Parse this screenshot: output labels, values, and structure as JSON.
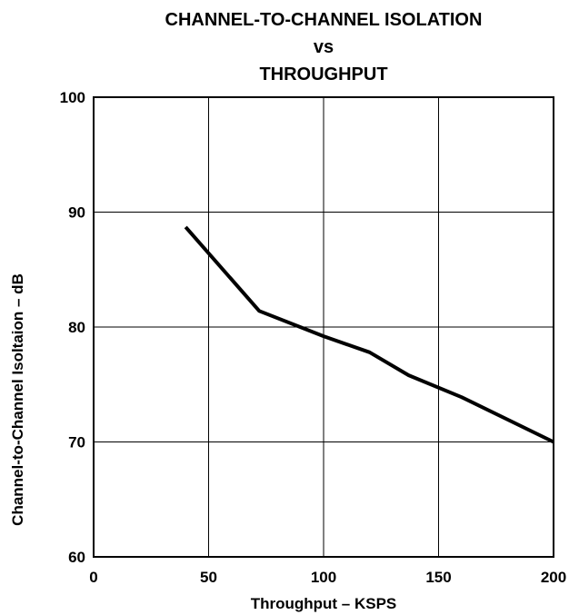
{
  "chart_data": {
    "type": "line",
    "title_lines": [
      "CHANNEL-TO-CHANNEL ISOLATION",
      "vs",
      "THROUGHPUT"
    ],
    "xlabel": "Throughput – KSPS",
    "ylabel": "Channel-to-Channel Isoltaion – dB",
    "xlim": [
      0,
      200
    ],
    "ylim": [
      60,
      100
    ],
    "x_ticks": [
      "0",
      "50",
      "100",
      "150",
      "200"
    ],
    "y_ticks": [
      "60",
      "70",
      "80",
      "90",
      "100"
    ],
    "grid": true,
    "series": [
      {
        "x": [
          40,
          72,
          100,
          120,
          137,
          160,
          200
        ],
        "y": [
          88.7,
          81.4,
          79.2,
          77.8,
          75.8,
          73.9,
          70.0
        ]
      }
    ]
  }
}
